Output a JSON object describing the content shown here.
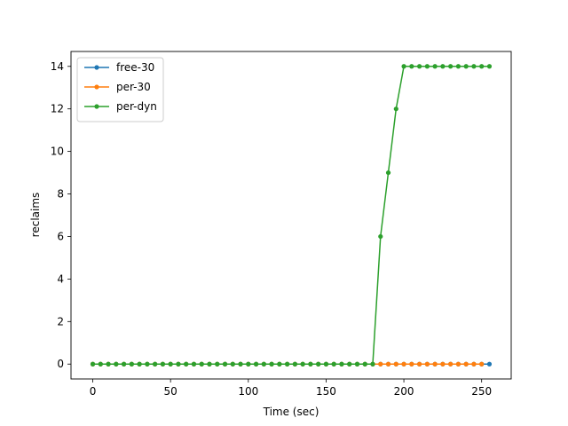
{
  "chart_data": {
    "type": "line",
    "title": "",
    "xlabel": "Time (sec)",
    "ylabel": "reclaims",
    "xlim": [
      -14,
      269
    ],
    "ylim": [
      -0.7,
      14.7
    ],
    "xticks": [
      0,
      50,
      100,
      150,
      200,
      250
    ],
    "yticks": [
      0,
      2,
      4,
      6,
      8,
      10,
      12,
      14
    ],
    "grid": false,
    "legend_position": "top-left",
    "series": [
      {
        "name": "free-30",
        "color": "#1f77b4",
        "marker": "circle",
        "x": [
          0,
          5,
          10,
          15,
          20,
          25,
          30,
          35,
          40,
          45,
          50,
          55,
          60,
          65,
          70,
          75,
          80,
          85,
          90,
          95,
          100,
          105,
          110,
          115,
          120,
          125,
          130,
          135,
          140,
          145,
          150,
          155,
          160,
          165,
          170,
          175,
          180,
          185,
          190,
          195,
          200,
          205,
          210,
          215,
          220,
          225,
          230,
          235,
          240,
          245,
          250,
          255
        ],
        "y": [
          0,
          0,
          0,
          0,
          0,
          0,
          0,
          0,
          0,
          0,
          0,
          0,
          0,
          0,
          0,
          0,
          0,
          0,
          0,
          0,
          0,
          0,
          0,
          0,
          0,
          0,
          0,
          0,
          0,
          0,
          0,
          0,
          0,
          0,
          0,
          0,
          0,
          0,
          0,
          0,
          0,
          0,
          0,
          0,
          0,
          0,
          0,
          0,
          0,
          0,
          0,
          0
        ]
      },
      {
        "name": "per-30",
        "color": "#ff7f0e",
        "marker": "circle",
        "x": [
          0,
          5,
          10,
          15,
          20,
          25,
          30,
          35,
          40,
          45,
          50,
          55,
          60,
          65,
          70,
          75,
          80,
          85,
          90,
          95,
          100,
          105,
          110,
          115,
          120,
          125,
          130,
          135,
          140,
          145,
          150,
          155,
          160,
          165,
          170,
          175,
          180,
          185,
          190,
          195,
          200,
          205,
          210,
          215,
          220,
          225,
          230,
          235,
          240,
          245,
          250
        ],
        "y": [
          0,
          0,
          0,
          0,
          0,
          0,
          0,
          0,
          0,
          0,
          0,
          0,
          0,
          0,
          0,
          0,
          0,
          0,
          0,
          0,
          0,
          0,
          0,
          0,
          0,
          0,
          0,
          0,
          0,
          0,
          0,
          0,
          0,
          0,
          0,
          0,
          0,
          0,
          0,
          0,
          0,
          0,
          0,
          0,
          0,
          0,
          0,
          0,
          0,
          0,
          0
        ]
      },
      {
        "name": "per-dyn",
        "color": "#2ca02c",
        "marker": "circle",
        "x": [
          0,
          5,
          10,
          15,
          20,
          25,
          30,
          35,
          40,
          45,
          50,
          55,
          60,
          65,
          70,
          75,
          80,
          85,
          90,
          95,
          100,
          105,
          110,
          115,
          120,
          125,
          130,
          135,
          140,
          145,
          150,
          155,
          160,
          165,
          170,
          175,
          180,
          185,
          190,
          195,
          200,
          205,
          210,
          215,
          220,
          225,
          230,
          235,
          240,
          245,
          250,
          255
        ],
        "y": [
          0,
          0,
          0,
          0,
          0,
          0,
          0,
          0,
          0,
          0,
          0,
          0,
          0,
          0,
          0,
          0,
          0,
          0,
          0,
          0,
          0,
          0,
          0,
          0,
          0,
          0,
          0,
          0,
          0,
          0,
          0,
          0,
          0,
          0,
          0,
          0,
          0,
          6,
          9,
          12,
          14,
          14,
          14,
          14,
          14,
          14,
          14,
          14,
          14,
          14,
          14,
          14
        ]
      }
    ]
  }
}
